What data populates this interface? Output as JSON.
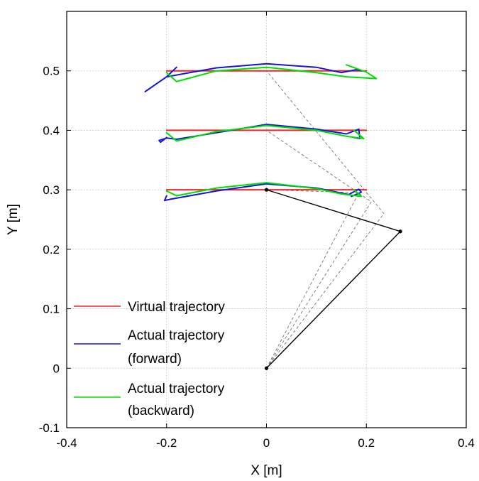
{
  "chart_data": {
    "type": "line",
    "xlabel": "X [m]",
    "ylabel": "Y [m]",
    "xlim": [
      -0.4,
      0.4
    ],
    "ylim": [
      -0.1,
      0.6
    ],
    "xticks": [
      -0.4,
      -0.2,
      0,
      0.2,
      0.4
    ],
    "xtick_labels": [
      "-0.4",
      "-0.2",
      "0",
      "0.2",
      "0.4"
    ],
    "yticks": [
      -0.1,
      0,
      0.1,
      0.2,
      0.3,
      0.4,
      0.5
    ],
    "ytick_labels": [
      "-0.1",
      "0",
      "0.1",
      "0.2",
      "0.3",
      "0.4",
      "0.5"
    ],
    "grid": true,
    "legend_position": "bottom-left",
    "legend": [
      {
        "lines": [
          "Virtual trajectory"
        ],
        "color": "#e8282b"
      },
      {
        "lines": [
          "Actual trajectory",
          "(forward)"
        ],
        "color": "#1515d8"
      },
      {
        "lines": [
          "Actual trajectory",
          "(backward)"
        ],
        "color": "#00e000"
      }
    ],
    "series": [
      {
        "name": "Virtual trajectory",
        "color": "#e8282b",
        "segments": [
          [
            [
              -0.2,
              0.5
            ],
            [
              0.2,
              0.5
            ]
          ],
          [
            [
              -0.2,
              0.4
            ],
            [
              0.2,
              0.4
            ]
          ],
          [
            [
              -0.2,
              0.3
            ],
            [
              0.2,
              0.3
            ]
          ]
        ]
      },
      {
        "name": "Actual trajectory (forward)",
        "color": "#1515d8",
        "segments": [
          [
            [
              -0.18,
              0.506
            ],
            [
              -0.2,
              0.49
            ],
            [
              -0.243,
              0.465
            ],
            [
              -0.2,
              0.49
            ],
            [
              -0.1,
              0.505
            ],
            [
              0,
              0.512
            ],
            [
              0.1,
              0.506
            ],
            [
              0.15,
              0.497
            ],
            [
              0.18,
              0.502
            ],
            [
              0.19,
              0.5
            ]
          ],
          [
            [
              -0.2,
              0.388
            ],
            [
              -0.212,
              0.38
            ],
            [
              -0.215,
              0.383
            ],
            [
              -0.2,
              0.387
            ],
            [
              -0.18,
              0.385
            ],
            [
              -0.1,
              0.396
            ],
            [
              0,
              0.41
            ],
            [
              0.1,
              0.402
            ],
            [
              0.16,
              0.394
            ],
            [
              0.185,
              0.402
            ],
            [
              0.187,
              0.386
            ],
            [
              0.175,
              0.388
            ]
          ],
          [
            [
              -0.2,
              0.29
            ],
            [
              -0.204,
              0.282
            ],
            [
              -0.193,
              0.284
            ],
            [
              -0.1,
              0.298
            ],
            [
              0,
              0.31
            ],
            [
              0.1,
              0.303
            ],
            [
              0.165,
              0.292
            ],
            [
              0.185,
              0.301
            ],
            [
              0.19,
              0.296
            ],
            [
              0.17,
              0.289
            ]
          ]
        ]
      },
      {
        "name": "Actual trajectory (backward)",
        "color": "#00e000",
        "segments": [
          [
            [
              0.16,
              0.51
            ],
            [
              0.2,
              0.498
            ],
            [
              0.22,
              0.487
            ],
            [
              0.16,
              0.49
            ],
            [
              0.1,
              0.497
            ],
            [
              0,
              0.506
            ],
            [
              -0.1,
              0.5
            ],
            [
              -0.18,
              0.482
            ],
            [
              -0.2,
              0.497
            ]
          ],
          [
            [
              0.175,
              0.4
            ],
            [
              0.195,
              0.386
            ],
            [
              0.16,
              0.39
            ],
            [
              0.1,
              0.4
            ],
            [
              0,
              0.408
            ],
            [
              -0.1,
              0.398
            ],
            [
              -0.18,
              0.382
            ],
            [
              -0.2,
              0.396
            ]
          ],
          [
            [
              0.175,
              0.3
            ],
            [
              0.19,
              0.289
            ],
            [
              0.15,
              0.293
            ],
            [
              0.1,
              0.302
            ],
            [
              0,
              0.312
            ],
            [
              -0.1,
              0.303
            ],
            [
              -0.18,
              0.29
            ],
            [
              -0.2,
              0.298
            ]
          ]
        ]
      }
    ],
    "arm_solid": {
      "color": "#000000",
      "points": [
        [
          0,
          0
        ],
        [
          0.268,
          0.23
        ],
        [
          0,
          0.3
        ]
      ]
    },
    "arm_dashed": {
      "color": "#808080",
      "polylines": [
        [
          [
            0,
            0
          ],
          [
            0.235,
            0.26
          ],
          [
            0,
            0.5
          ]
        ],
        [
          [
            0,
            0
          ],
          [
            0.21,
            0.28
          ],
          [
            0,
            0.4
          ]
        ],
        [
          [
            0,
            0
          ],
          [
            0.185,
            0.295
          ],
          [
            0,
            0.3
          ]
        ]
      ]
    }
  }
}
